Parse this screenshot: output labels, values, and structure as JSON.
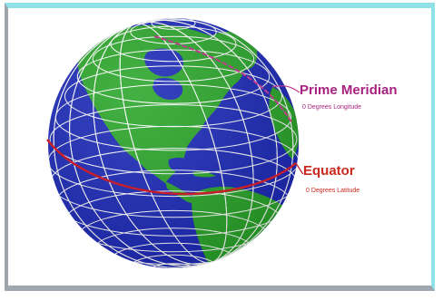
{
  "colors": {
    "frame": "#8fe3e6",
    "ocean": "#1c29b8",
    "land": "#2aa62a",
    "grid": "#ffffff",
    "equator": "#c81e2a",
    "prime_meridian": "#c03a8f",
    "prime_meridian_text": "#a8237f",
    "equator_text": "#c8281c"
  },
  "labels": {
    "prime_meridian": {
      "title": "Prime Meridian",
      "subtitle": "0 Degrees Longitude"
    },
    "equator": {
      "title": "Equator",
      "subtitle": "0 Degrees Latitude"
    }
  }
}
